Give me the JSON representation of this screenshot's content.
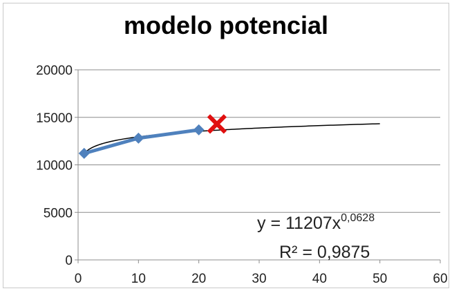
{
  "chart_data": {
    "type": "scatter",
    "title": "modelo potencial",
    "xlabel": "",
    "ylabel": "",
    "xlim": [
      0,
      60
    ],
    "ylim": [
      0,
      20000
    ],
    "x_ticks": [
      "0",
      "10",
      "20",
      "30",
      "40",
      "50",
      "60"
    ],
    "y_ticks": [
      "0",
      "5000",
      "10000",
      "15000",
      "20000"
    ],
    "grid": "horizontal",
    "legend": "none",
    "series": [
      {
        "marker": "diamond",
        "color": "#4f81bd",
        "connected": true,
        "x": [
          1,
          10,
          20
        ],
        "y": [
          11207,
          12810,
          13680
        ]
      },
      {
        "marker": "x",
        "color": "#e01010",
        "x": [
          23
        ],
        "y": [
          14300
        ]
      }
    ],
    "trendline": {
      "model": "power",
      "a": 11207,
      "b": 0.0628,
      "x_range": [
        1,
        50
      ],
      "color": "#000000"
    },
    "equation": {
      "text": "y = 11207x",
      "exponent": "0,0628",
      "r2": "R² = 0,9875"
    }
  }
}
